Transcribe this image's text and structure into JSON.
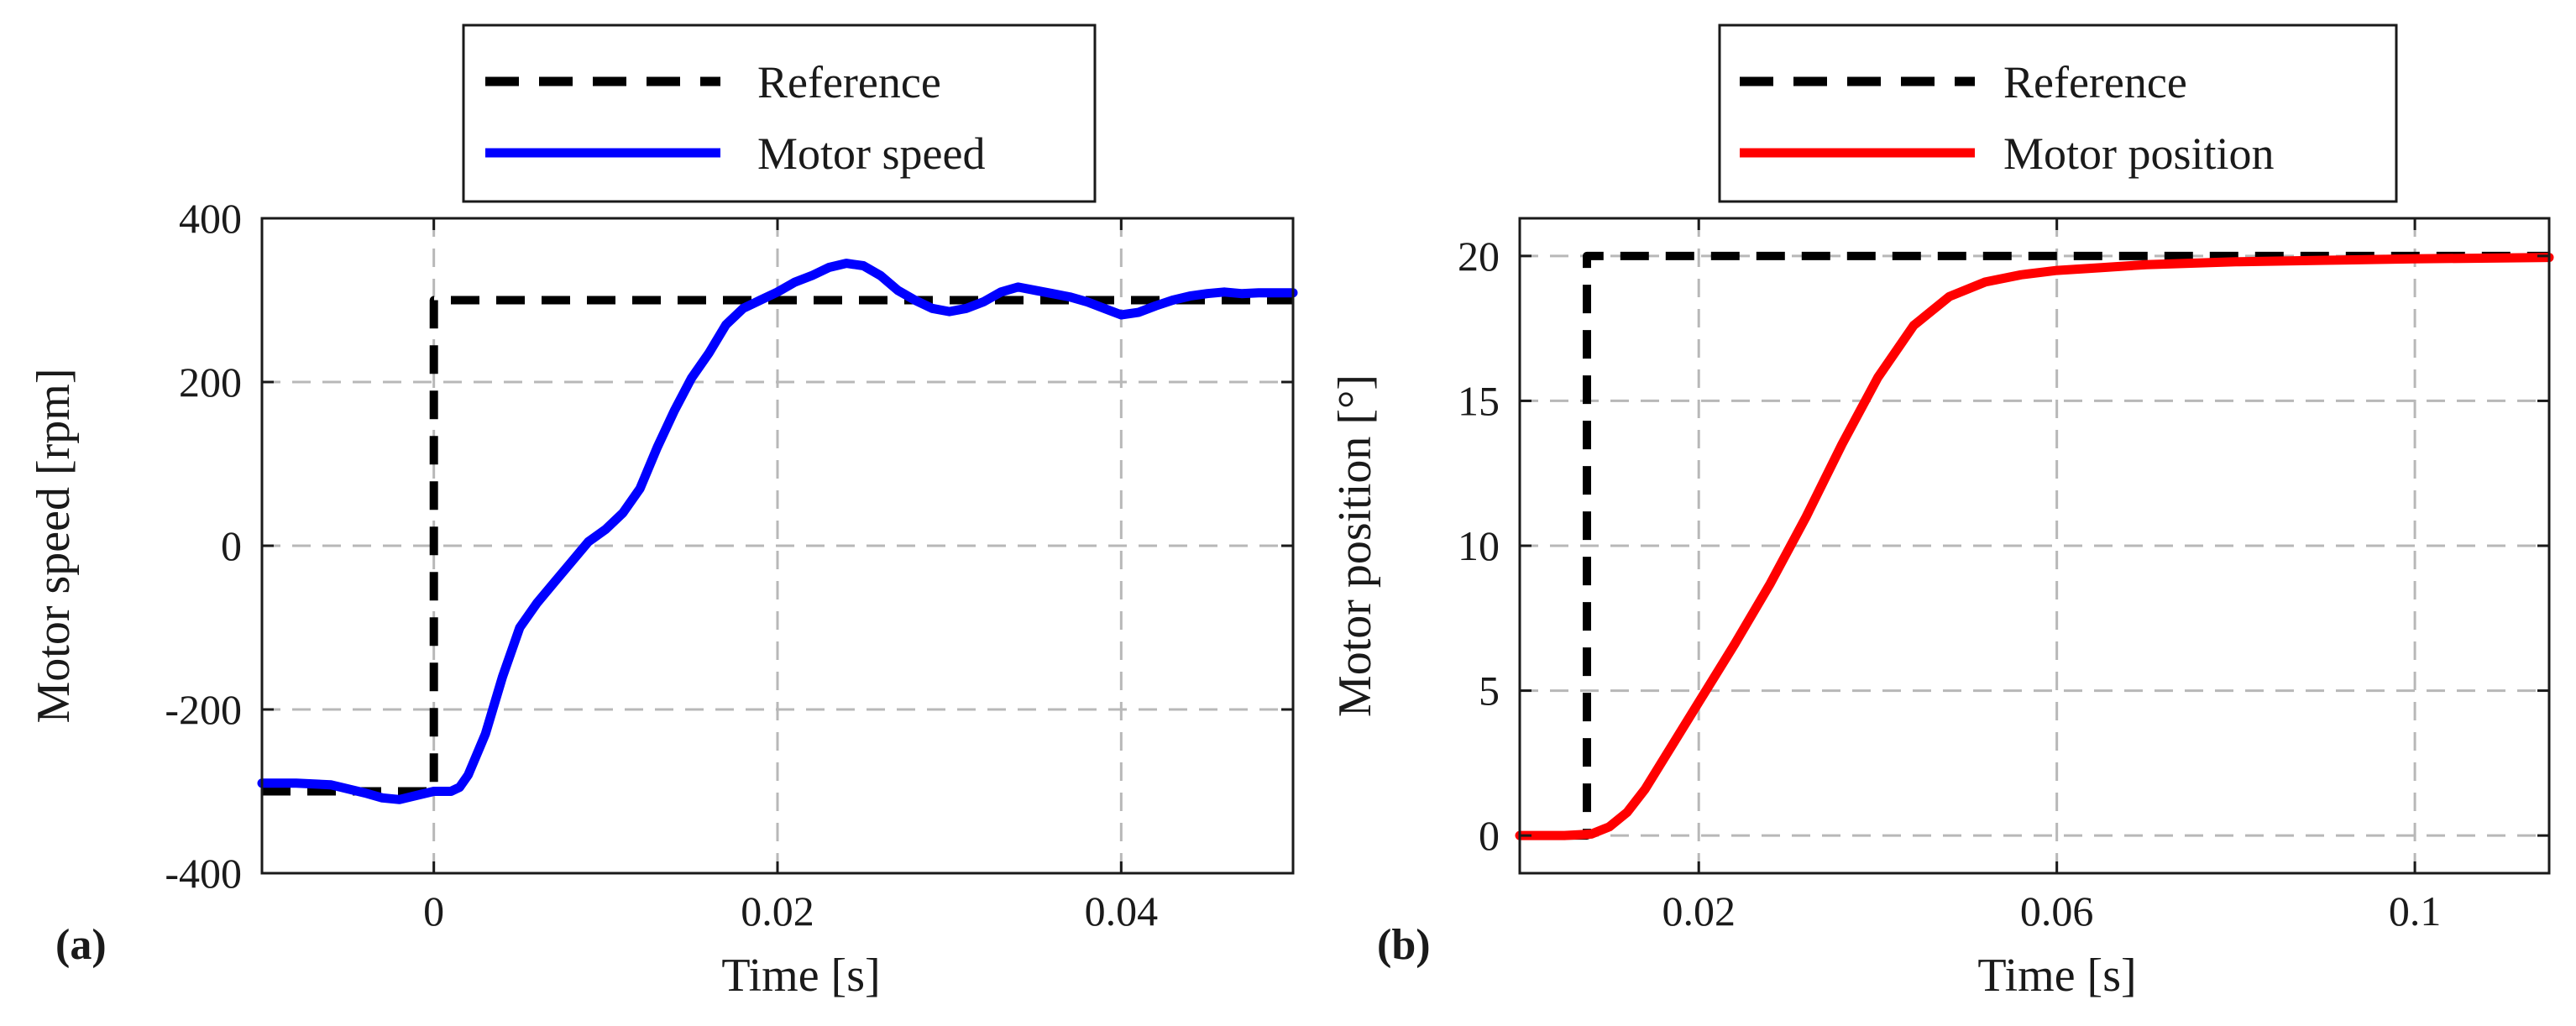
{
  "chart_data": [
    {
      "panel_label": "(a)",
      "type": "line",
      "xlabel": "Time [s]",
      "ylabel": "Motor speed [rpm]",
      "xlim": [
        -0.01,
        0.05
      ],
      "ylim": [
        -400,
        400
      ],
      "xticks": [
        0,
        0.02,
        0.04
      ],
      "xtick_labels": [
        "0",
        "0.02",
        "0.04"
      ],
      "yticks": [
        -400,
        -200,
        0,
        200,
        400
      ],
      "ytick_labels": [
        "-400",
        "-200",
        "0",
        "200",
        "400"
      ],
      "grid": true,
      "legend_position": "above",
      "colors": {
        "reference": "#000000",
        "motor": "#0000ff"
      },
      "series": [
        {
          "name": "Reference",
          "style": "dashed",
          "x": [
            -0.01,
            0.0,
            0.0,
            0.05
          ],
          "y": [
            -300,
            -300,
            300,
            300
          ]
        },
        {
          "name": "Motor speed",
          "style": "solid",
          "x": [
            -0.01,
            -0.008,
            -0.006,
            -0.004,
            -0.003,
            -0.002,
            -0.001,
            0.0,
            0.001,
            0.0015,
            0.002,
            0.003,
            0.004,
            0.005,
            0.006,
            0.007,
            0.008,
            0.009,
            0.01,
            0.011,
            0.012,
            0.013,
            0.014,
            0.015,
            0.016,
            0.017,
            0.018,
            0.019,
            0.02,
            0.021,
            0.022,
            0.023,
            0.024,
            0.025,
            0.026,
            0.027,
            0.028,
            0.029,
            0.03,
            0.031,
            0.032,
            0.033,
            0.034,
            0.035,
            0.036,
            0.037,
            0.038,
            0.039,
            0.04,
            0.041,
            0.042,
            0.043,
            0.044,
            0.045,
            0.046,
            0.047,
            0.048,
            0.049,
            0.05
          ],
          "y": [
            -290,
            -290,
            -292,
            -302,
            -308,
            -310,
            -305,
            -300,
            -300,
            -295,
            -280,
            -230,
            -160,
            -100,
            -70,
            -45,
            -20,
            5,
            20,
            40,
            70,
            120,
            165,
            205,
            235,
            270,
            290,
            300,
            310,
            322,
            330,
            340,
            345,
            342,
            330,
            312,
            300,
            290,
            286,
            290,
            298,
            310,
            316,
            312,
            308,
            304,
            298,
            290,
            282,
            285,
            293,
            300,
            305,
            308,
            310,
            308,
            309,
            309,
            309
          ]
        }
      ]
    },
    {
      "panel_label": "(b)",
      "type": "line",
      "xlabel": "Time [s]",
      "ylabel": "Motor position [°]",
      "xlim": [
        0.0,
        0.115
      ],
      "ylim": [
        -1.3,
        21.3
      ],
      "xticks": [
        0.02,
        0.06,
        0.1
      ],
      "xtick_labels": [
        "0.02",
        "0.06",
        "0.1"
      ],
      "yticks": [
        0,
        5,
        10,
        15,
        20
      ],
      "ytick_labels": [
        "0",
        "5",
        "10",
        "15",
        "20"
      ],
      "grid": true,
      "legend_position": "above",
      "colors": {
        "reference": "#000000",
        "motor": "#ff0000"
      },
      "series": [
        {
          "name": "Reference",
          "style": "dashed",
          "x": [
            0.0,
            0.0075,
            0.0075,
            0.115
          ],
          "y": [
            0,
            0,
            20,
            20
          ]
        },
        {
          "name": "Motor position",
          "style": "solid",
          "x": [
            0.0,
            0.005,
            0.008,
            0.01,
            0.012,
            0.014,
            0.016,
            0.018,
            0.02,
            0.024,
            0.028,
            0.032,
            0.036,
            0.04,
            0.044,
            0.048,
            0.052,
            0.056,
            0.06,
            0.065,
            0.07,
            0.08,
            0.09,
            0.1,
            0.115
          ],
          "y": [
            0,
            0,
            0.05,
            0.3,
            0.8,
            1.6,
            2.6,
            3.6,
            4.6,
            6.6,
            8.7,
            11.0,
            13.5,
            15.8,
            17.6,
            18.6,
            19.1,
            19.35,
            19.5,
            19.6,
            19.7,
            19.8,
            19.85,
            19.9,
            19.95
          ]
        }
      ]
    }
  ]
}
